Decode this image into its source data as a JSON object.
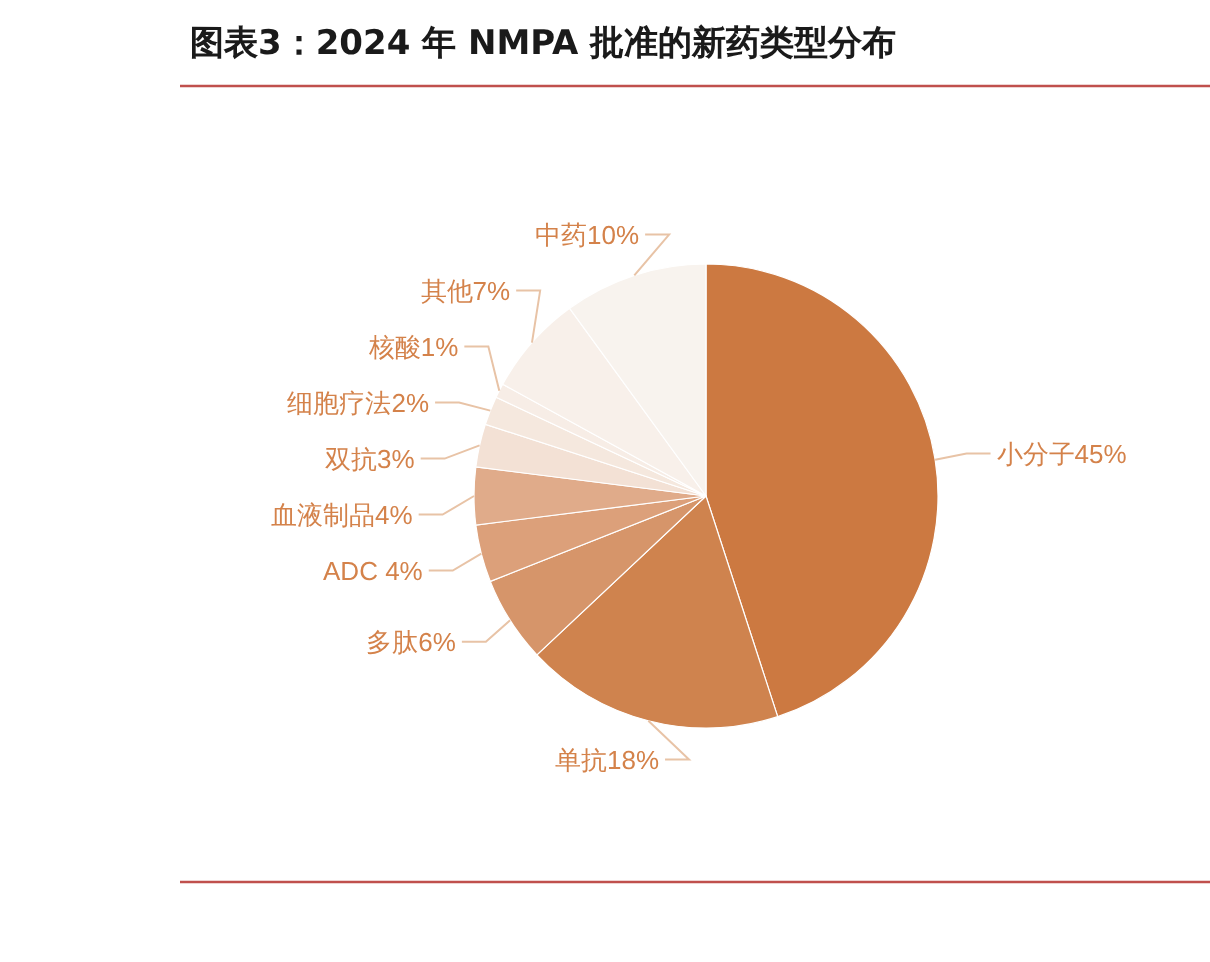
{
  "chart_data": {
    "type": "pie",
    "title": "图表3：2024 年 NMPA 批准的新药类型分布",
    "categories": [
      "小分子",
      "单抗",
      "多肽",
      "ADC",
      "血液制品",
      "双抗",
      "细胞疗法",
      "核酸",
      "其他",
      "中药"
    ],
    "values": [
      45,
      18,
      6,
      4,
      4,
      3,
      2,
      1,
      7,
      10
    ],
    "value_labels": [
      "45%",
      "18%",
      "6%",
      " 4%",
      "4%",
      "3%",
      "2%",
      "1%",
      "7%",
      "10%"
    ],
    "colors": [
      "#cc7941",
      "#cf834e",
      "#d6956a",
      "#dca07a",
      "#e0ab8a",
      "#f3e1d5",
      "#f5e8de",
      "#f7ede6",
      "#f8f0ea",
      "#f8f3ee"
    ]
  }
}
